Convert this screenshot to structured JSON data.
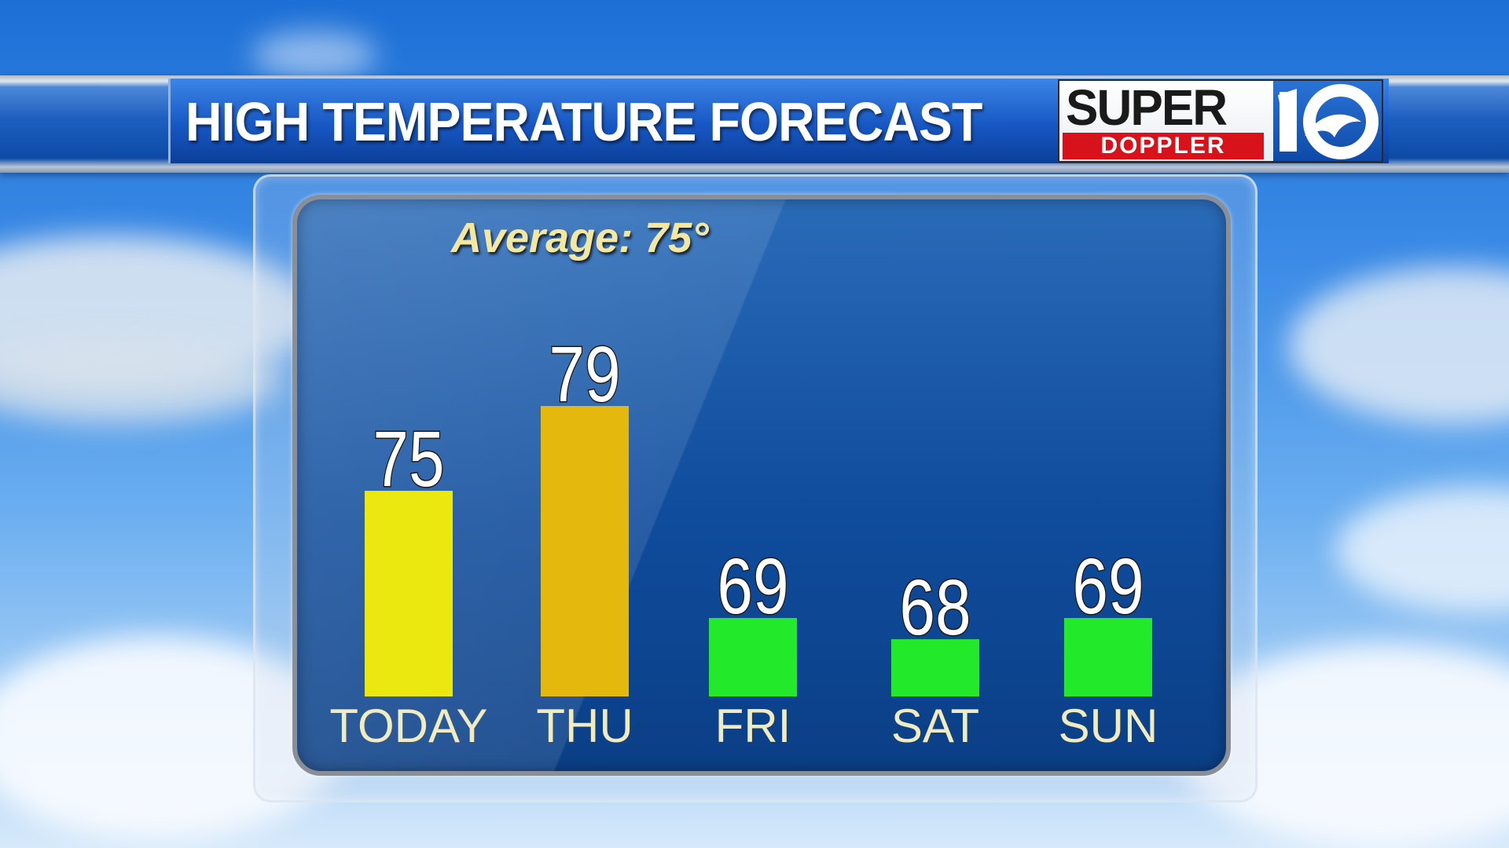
{
  "header": {
    "title": "HIGH TEMPERATURE FORECAST"
  },
  "logo": {
    "line1": "SUPER",
    "line2": "DOPPLER",
    "number": "10"
  },
  "average": {
    "label": "Average: 75°"
  },
  "colors": {
    "today": "#ebe80f",
    "thu": "#e5b80d",
    "cool": "#22ea2a",
    "panel": "#0f4c9c",
    "day_text": "#f1ebc0",
    "avg_text": "#f3e7a2"
  },
  "chart_data": {
    "type": "bar",
    "title": "HIGH TEMPERATURE FORECAST",
    "subtitle": "Average: 75°",
    "categories": [
      "TODAY",
      "THU",
      "FRI",
      "SAT",
      "SUN"
    ],
    "values": [
      75,
      79,
      69,
      68,
      69
    ],
    "bar_colors": [
      "#ebe80f",
      "#e5b80d",
      "#22ea2a",
      "#22ea2a",
      "#22ea2a"
    ],
    "data_labels": [
      "75",
      "79",
      "69",
      "68",
      "69"
    ],
    "xlabel": "",
    "ylabel": "",
    "grid": false,
    "legend": "none"
  }
}
